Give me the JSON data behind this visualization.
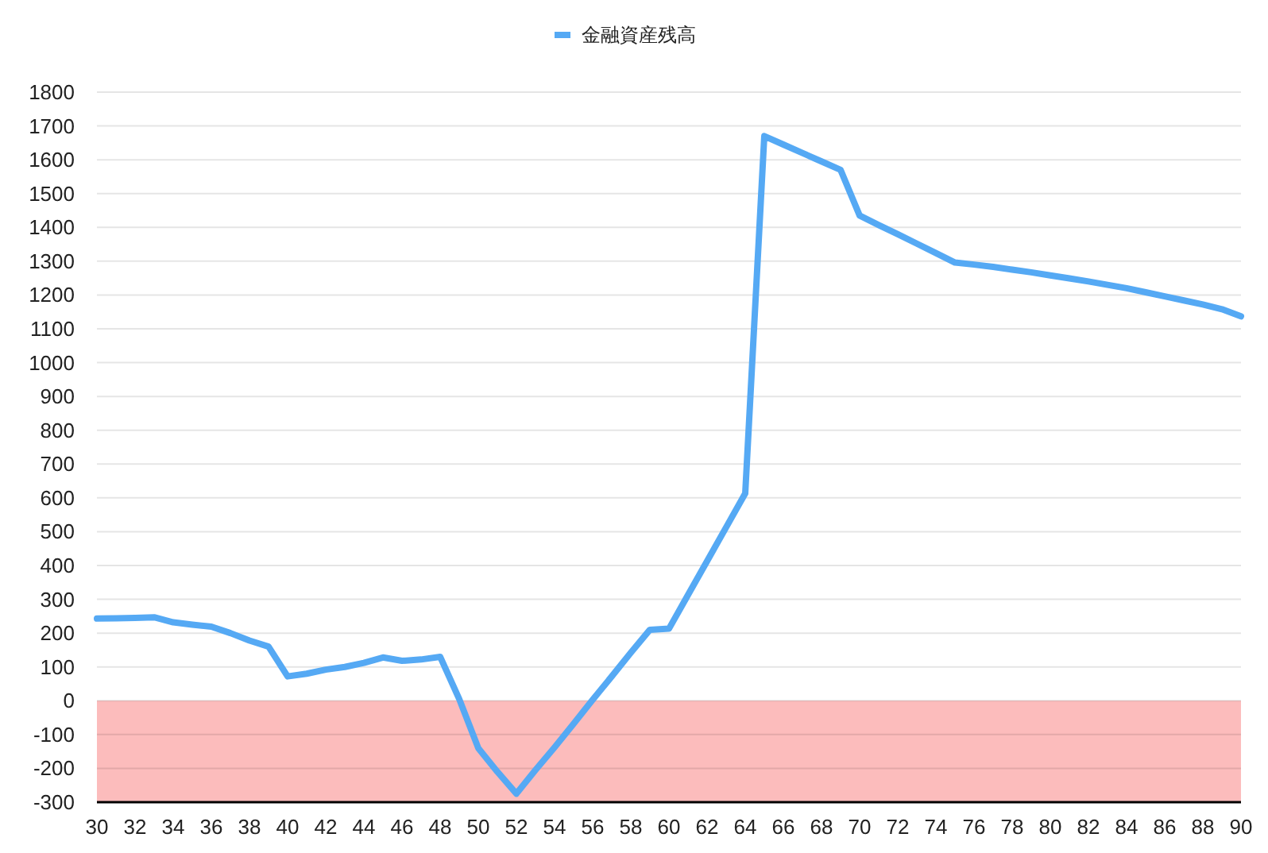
{
  "chart_data": {
    "type": "line",
    "legend": "top",
    "grid": "y",
    "marker": "none",
    "line_style": "solid",
    "x": [
      30,
      31,
      32,
      33,
      34,
      35,
      36,
      37,
      38,
      39,
      40,
      41,
      42,
      43,
      44,
      45,
      46,
      47,
      48,
      49,
      50,
      51,
      52,
      53,
      54,
      55,
      56,
      57,
      58,
      59,
      60,
      61,
      62,
      63,
      64,
      65,
      66,
      67,
      68,
      69,
      70,
      71,
      72,
      73,
      74,
      75,
      76,
      77,
      78,
      79,
      80,
      81,
      82,
      83,
      84,
      85,
      86,
      87,
      88,
      89,
      90
    ],
    "series": [
      {
        "name": "金融資産残高",
        "color": "#55a9f4",
        "values": [
          243,
          244,
          245,
          247,
          232,
          225,
          219,
          200,
          178,
          160,
          72,
          80,
          92,
          100,
          112,
          128,
          118,
          122,
          130,
          5,
          -140,
          -210,
          -275,
          -205,
          -138,
          -68,
          3,
          72,
          142,
          210,
          213,
          313,
          413,
          513,
          613,
          1670,
          1645,
          1620,
          1595,
          1570,
          1435,
          1407,
          1380,
          1352,
          1324,
          1296,
          1290,
          1283,
          1275,
          1267,
          1258,
          1249,
          1240,
          1230,
          1220,
          1208,
          1196,
          1184,
          1172,
          1158,
          1137
        ]
      }
    ],
    "xlim": [
      30,
      90
    ],
    "xticks": [
      30,
      32,
      34,
      36,
      38,
      40,
      42,
      44,
      46,
      48,
      50,
      52,
      54,
      56,
      58,
      60,
      62,
      64,
      66,
      68,
      70,
      72,
      74,
      76,
      78,
      80,
      82,
      84,
      86,
      88,
      90
    ],
    "ylim": [
      -300,
      1800
    ],
    "yticks": [
      -300,
      -200,
      -100,
      0,
      100,
      200,
      300,
      400,
      500,
      600,
      700,
      800,
      900,
      1000,
      1100,
      1200,
      1300,
      1400,
      1500,
      1600,
      1700,
      1800
    ],
    "bands": [
      {
        "axis": "y",
        "from": -300,
        "to": 0,
        "color": "#fcbcbc"
      }
    ]
  }
}
